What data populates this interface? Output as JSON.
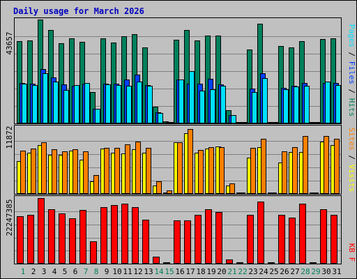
{
  "chart_data": {
    "type": "bar",
    "title": "Daily usage for March 2026",
    "colors": {
      "background": "#c0c0c0",
      "hits": "#00805c",
      "files": "#0040ff",
      "pages": "#00e0ff",
      "visits": "#ffff00",
      "sites": "#ff8000",
      "kbytes": "#ff0000",
      "weekday_label": "#000000",
      "weekend_label": "#00805c",
      "title": "#0000c0"
    },
    "days": [
      "1",
      "2",
      "3",
      "4",
      "5",
      "6",
      "7",
      "8",
      "9",
      "10",
      "11",
      "12",
      "13",
      "14",
      "15",
      "16",
      "17",
      "18",
      "19",
      "20",
      "21",
      "22",
      "23",
      "24",
      "25",
      "26",
      "27",
      "28",
      "29",
      "30",
      "31"
    ],
    "weekend_days": [
      "1",
      "7",
      "8",
      "14",
      "15",
      "21",
      "22",
      "28",
      "29"
    ],
    "panels": [
      {
        "id": "hits-files-pages",
        "tick_label": "43657",
        "ymax": 43657,
        "right_labels": [
          {
            "text": "Pages",
            "color": "#00e0ff"
          },
          {
            "text": " / ",
            "color": "#000000"
          },
          {
            "text": "Files",
            "color": "#0040ff"
          },
          {
            "text": " / ",
            "color": "#000000"
          },
          {
            "text": "Hits",
            "color": "#00805c"
          }
        ],
        "series": [
          {
            "name": "Hits",
            "color": "#00805c",
            "values": [
              34500,
              34800,
              43600,
              39300,
              33600,
              35700,
              34100,
              13000,
              35700,
              34000,
              36700,
              37500,
              31800,
              6900,
              620,
              35100,
              39300,
              34800,
              37000,
              37000,
              5300,
              0,
              31000,
              41800,
              0,
              32500,
              31800,
              34500,
              0,
              35400,
              35700
            ]
          },
          {
            "name": "Files",
            "color": "#0040ff",
            "values": [
              16800,
              16500,
              22600,
              19300,
              16200,
              15600,
              16500,
              5800,
              16500,
              16500,
              18300,
              20500,
              15900,
              4300,
              350,
              18300,
              16500,
              16500,
              18600,
              16200,
              3300,
              0,
              14400,
              20800,
              0,
              14700,
              15600,
              16800,
              0,
              16800,
              16800
            ]
          },
          {
            "name": "Pages",
            "color": "#00e0ff",
            "values": [
              16500,
              15900,
              20800,
              17400,
              13900,
              15900,
              16800,
              5800,
              16200,
              15900,
              15600,
              17400,
              15600,
              4000,
              180,
              18300,
              21700,
              13500,
              14100,
              15600,
              3100,
              0,
              13000,
              18900,
              0,
              14100,
              15300,
              15600,
              0,
              17400,
              15900
            ]
          }
        ]
      },
      {
        "id": "visits-sites",
        "tick_label": "11872",
        "ymax": 11872,
        "right_labels": [
          {
            "text": "Sites",
            "color": "#ff8000"
          },
          {
            "text": " / ",
            "color": "#000000"
          },
          {
            "text": "Visits",
            "color": "#ffff00"
          }
        ],
        "series": [
          {
            "name": "Visits",
            "color": "#ffff00",
            "values": [
              5800,
              7300,
              8700,
              7000,
              6900,
              7700,
              6100,
              2200,
              8100,
              7300,
              7200,
              8000,
              7300,
              1400,
              110,
              9200,
              10900,
              7300,
              8100,
              8500,
              1400,
              0,
              6400,
              8300,
              0,
              5500,
              7400,
              7500,
              0,
              9300,
              8700
            ]
          },
          {
            "name": "Sites",
            "color": "#ff8000",
            "values": [
              7700,
              8100,
              9200,
              8000,
              7600,
              8000,
              7600,
              3300,
              8200,
              8200,
              8900,
              9400,
              8200,
              2200,
              480,
              9200,
              11600,
              7800,
              8300,
              8300,
              1800,
              0,
              8200,
              9900,
              0,
              7600,
              8300,
              10400,
              0,
              10400,
              9900
            ]
          }
        ]
      },
      {
        "id": "kbytes",
        "tick_label": "22247385",
        "ymax": 22247385,
        "right_labels": [
          {
            "text": "KB F",
            "color": "#ff0000"
          }
        ],
        "series": [
          {
            "name": "KB F",
            "color": "#ff0000",
            "values": [
              16000000,
              16500000,
              22200000,
              18500000,
              16900000,
              15400000,
              18100000,
              7500000,
              19100000,
              19900000,
              20300000,
              19200000,
              14800000,
              2200000,
              240000,
              14500000,
              14500000,
              16500000,
              18500000,
              17400000,
              1100000,
              0,
              16500000,
              21100000,
              0,
              16500000,
              15600000,
              20300000,
              0,
              18400000,
              16500000
            ]
          }
        ]
      }
    ]
  }
}
